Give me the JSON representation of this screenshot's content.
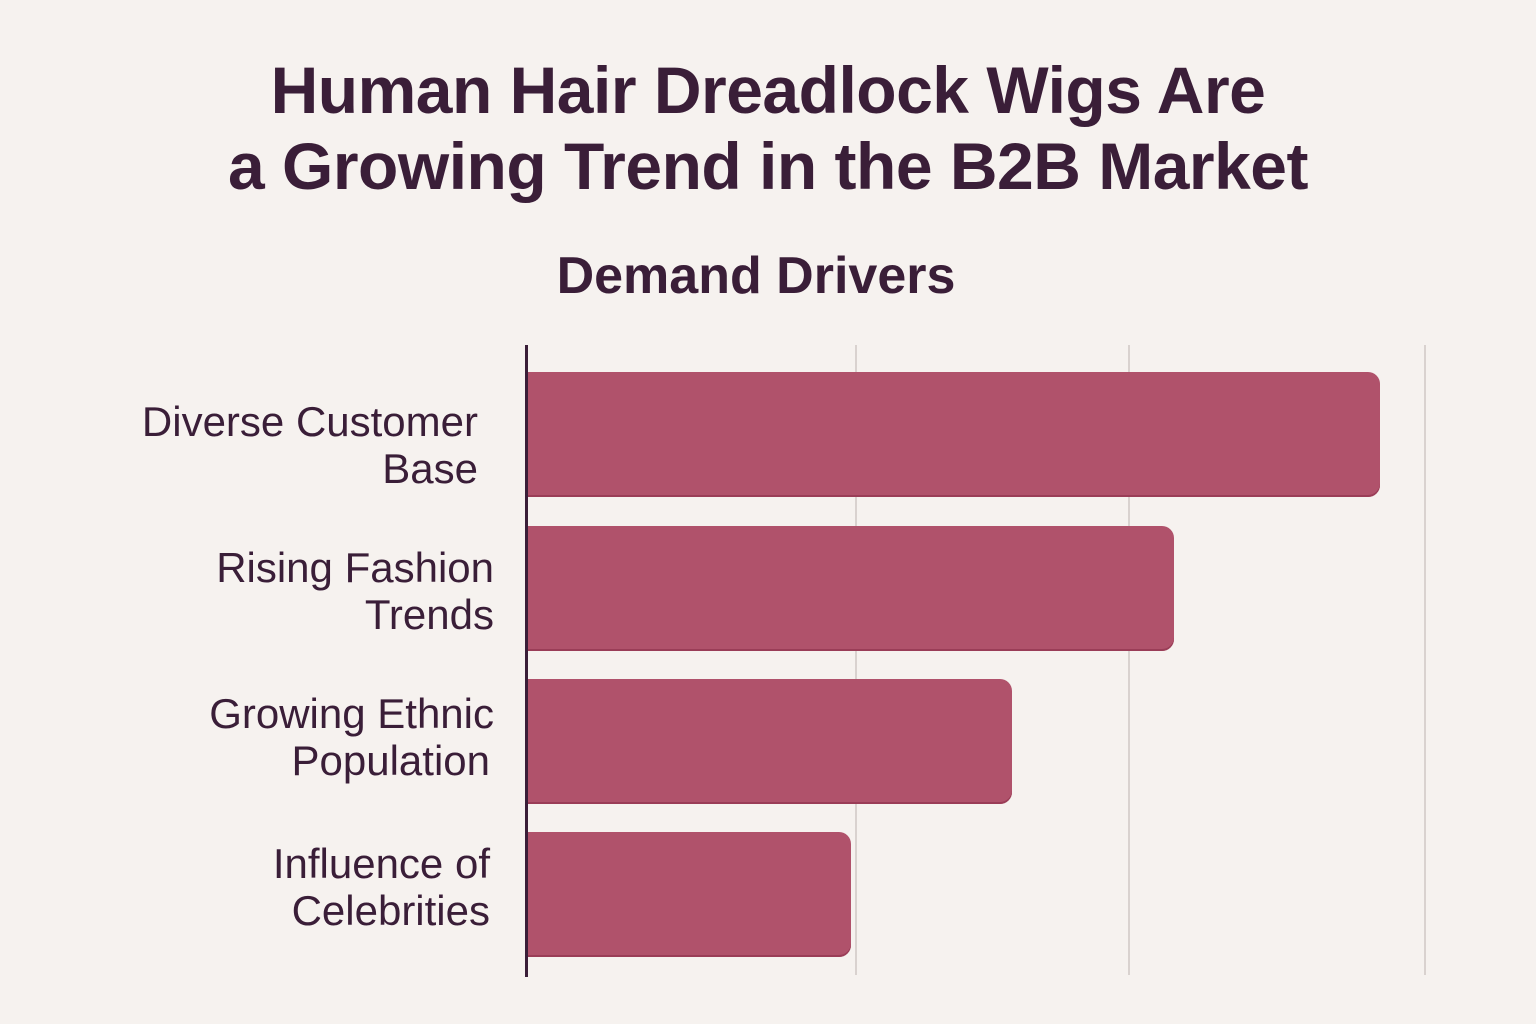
{
  "header": {
    "title_line1": "Human Hair Dreadlock Wigs Are",
    "title_line2": "a Growing Trend in the B2B Market",
    "subtitle": "Demand Drivers"
  },
  "colors": {
    "background": "#f6f2ef",
    "bar": "#b0526b",
    "text": "#3a1e38",
    "gridline": "#d9d2cf"
  },
  "chart_data": {
    "type": "bar",
    "orientation": "horizontal",
    "title": "Human Hair Dreadlock Wigs Are a Growing Trend in the B2B Market",
    "subtitle": "Demand Drivers",
    "categories": [
      "Diverse Customer Base",
      "Rising Fashion Trends",
      "Growing Ethnic Population",
      "Influence of Celebrities"
    ],
    "category_lines": [
      [
        "Diverse Customer",
        "Base"
      ],
      [
        "Rising Fashion",
        "Trends"
      ],
      [
        "Growing Ethnic",
        "Population"
      ],
      [
        "Influence of",
        "Celebrities"
      ]
    ],
    "values": [
      95,
      72,
      54,
      36
    ],
    "value_note": "Relative magnitudes estimated from bar lengths; no numeric axis labels shown",
    "xlabel": "",
    "ylabel": "",
    "xlim": [
      0,
      100
    ],
    "gridlines_x": [
      36.6,
      67,
      100
    ],
    "grid": true,
    "legend": null,
    "tick_labels_shown": false
  }
}
